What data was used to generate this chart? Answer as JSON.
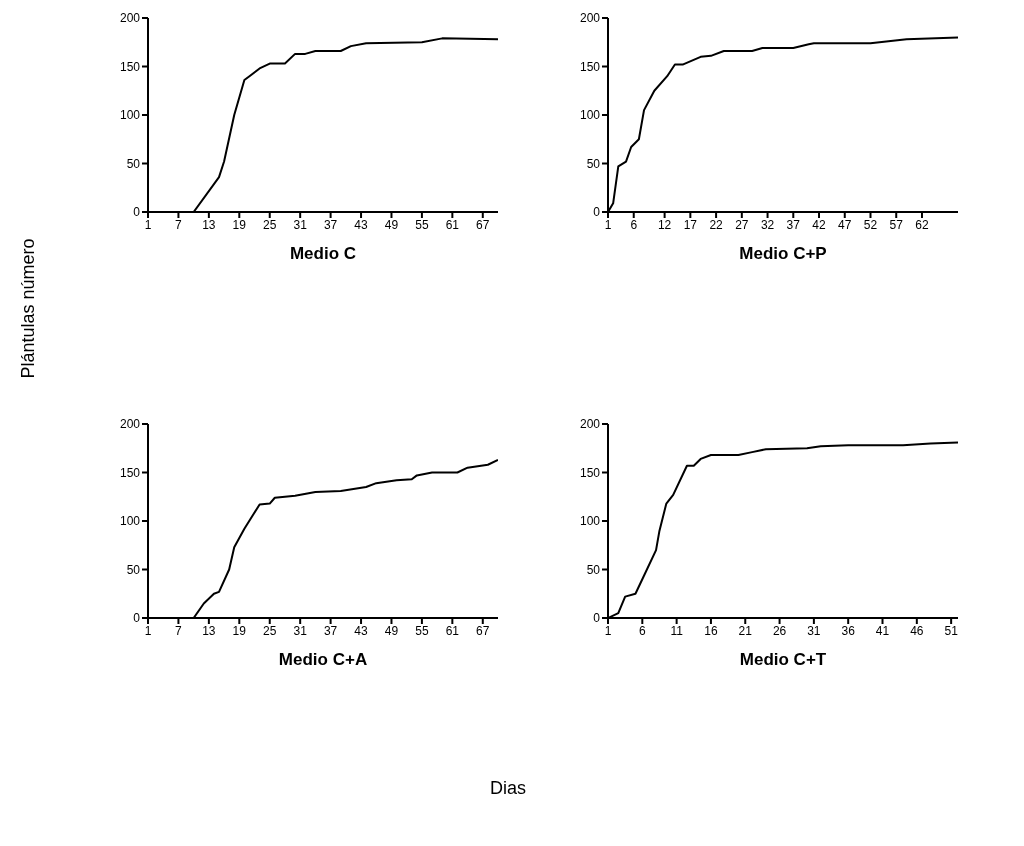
{
  "chart_data": [
    {
      "type": "line",
      "title": "Medio C",
      "ylabel": "Plántulas número",
      "x": [
        1,
        10,
        15,
        16,
        18,
        20,
        21,
        23,
        25,
        28,
        30,
        32,
        34,
        39,
        41,
        44,
        55,
        59,
        70
      ],
      "series": [
        {
          "color": "#000000",
          "values": [
            0,
            0,
            36,
            52,
            100,
            136,
            140,
            148,
            153,
            153,
            163,
            163,
            166,
            166,
            171,
            174,
            175,
            179,
            178
          ]
        }
      ],
      "xlim": [
        1,
        70
      ],
      "xticks": [
        1,
        7,
        13,
        19,
        25,
        31,
        37,
        43,
        49,
        55,
        61,
        67
      ],
      "ylim": [
        0,
        200
      ],
      "yticks": [
        0,
        50,
        100,
        150,
        200
      ],
      "grid": false,
      "legend": false,
      "marker": "none",
      "line_style": "solid"
    },
    {
      "type": "line",
      "title": "Medio C+P",
      "x": [
        1,
        2,
        3,
        4.5,
        5.5,
        7,
        8,
        10,
        12.5,
        14,
        15.5,
        19,
        21,
        23.5,
        29,
        31,
        37,
        40,
        41,
        52,
        55.5,
        59,
        69
      ],
      "series": [
        {
          "color": "#000000",
          "values": [
            0,
            9,
            47,
            52,
            67,
            75,
            105,
            125,
            140,
            152,
            152,
            160,
            161,
            166,
            166,
            169,
            169,
            173,
            174,
            174,
            176,
            178,
            180
          ]
        }
      ],
      "xlim": [
        1,
        69
      ],
      "xticks": [
        1,
        6,
        12,
        17,
        22,
        27,
        32,
        37,
        42,
        47,
        52,
        57,
        62
      ],
      "ylim": [
        0,
        200
      ],
      "yticks": [
        0,
        50,
        100,
        150,
        200
      ],
      "grid": false,
      "legend": false,
      "marker": "none",
      "line_style": "solid"
    },
    {
      "type": "line",
      "title": "Medio C+A",
      "x": [
        1,
        10,
        12,
        14,
        15,
        17,
        18,
        20,
        23,
        25,
        26,
        30,
        34,
        39,
        44,
        46,
        50,
        53,
        54,
        57,
        62,
        64,
        68,
        70
      ],
      "series": [
        {
          "color": "#000000",
          "values": [
            0,
            0,
            15,
            25,
            27,
            50,
            73,
            92,
            117,
            118,
            124,
            126,
            130,
            131,
            135,
            139,
            142,
            143,
            147,
            150,
            150,
            155,
            158,
            163
          ]
        }
      ],
      "xlim": [
        1,
        70
      ],
      "xticks": [
        1,
        7,
        13,
        19,
        25,
        31,
        37,
        43,
        49,
        55,
        61,
        67
      ],
      "ylim": [
        0,
        200
      ],
      "yticks": [
        0,
        50,
        100,
        150,
        200
      ],
      "grid": false,
      "legend": false,
      "marker": "none",
      "line_style": "solid"
    },
    {
      "type": "line",
      "title": "Medio C+T",
      "xlabel": "Dias",
      "x": [
        1,
        2.5,
        3.5,
        5,
        6,
        8,
        8.5,
        9.5,
        10.5,
        12.5,
        13.5,
        14.5,
        16,
        20,
        22,
        24,
        30,
        32,
        36,
        44,
        48,
        52
      ],
      "series": [
        {
          "color": "#000000",
          "values": [
            0,
            5,
            22,
            25,
            40,
            70,
            90,
            118,
            127,
            157,
            157,
            164,
            168,
            168,
            171,
            174,
            175,
            177,
            178,
            178,
            180,
            181
          ]
        }
      ],
      "xlim": [
        1,
        52
      ],
      "xticks": [
        1,
        6,
        11,
        16,
        21,
        26,
        31,
        36,
        41,
        46,
        51
      ],
      "ylim": [
        0,
        200
      ],
      "yticks": [
        0,
        50,
        100,
        150,
        200
      ],
      "grid": false,
      "legend": false,
      "marker": "none",
      "line_style": "solid"
    }
  ]
}
